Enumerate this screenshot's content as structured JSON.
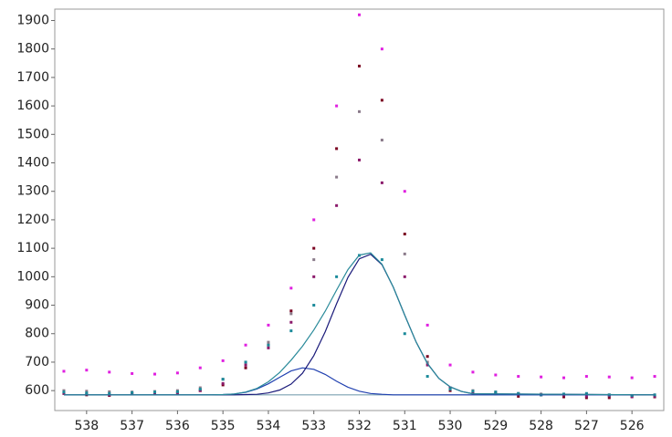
{
  "chart_data": {
    "type": "scatter",
    "xlim": [
      538.7,
      525.3
    ],
    "ylim": [
      530,
      1940
    ],
    "xticks": [
      538,
      537,
      536,
      535,
      534,
      533,
      532,
      531,
      530,
      529,
      528,
      527,
      526
    ],
    "yticks": [
      600,
      700,
      800,
      900,
      1000,
      1100,
      1200,
      1300,
      1400,
      1500,
      1600,
      1700,
      1800,
      1900
    ],
    "x": [
      538.5,
      538,
      537.5,
      537,
      536.5,
      536,
      535.5,
      535,
      534.5,
      534,
      533.5,
      533,
      532.5,
      532,
      531.5,
      531,
      530.5,
      530,
      529.5,
      529,
      528.5,
      528,
      527.5,
      527,
      526.5,
      526,
      525.5
    ],
    "series": [
      {
        "color": "#e020e0",
        "values": [
          668,
          672,
          665,
          660,
          658,
          662,
          680,
          705,
          760,
          830,
          960,
          1200,
          1600,
          1920,
          1800,
          1300,
          830,
          690,
          665,
          655,
          650,
          648,
          645,
          650,
          648,
          645,
          650
        ]
      },
      {
        "color": "#7a0020",
        "values": [
          590,
          585,
          583,
          588,
          590,
          592,
          600,
          620,
          680,
          760,
          880,
          1100,
          1450,
          1740,
          1620,
          1150,
          720,
          600,
          590,
          588,
          580,
          585,
          578,
          575,
          575,
          580,
          578
        ]
      },
      {
        "color": "#8a7a8a",
        "values": [
          600,
          598,
          596,
          595,
          597,
          600,
          610,
          640,
          700,
          770,
          870,
          1060,
          1350,
          1580,
          1480,
          1080,
          700,
          610,
          600,
          595,
          590,
          588,
          585,
          588,
          585,
          583,
          585
        ]
      },
      {
        "color": "#8b1a6b",
        "values": [
          590,
          588,
          585,
          590,
          588,
          590,
          600,
          625,
          690,
          750,
          840,
          1000,
          1250,
          1410,
          1330,
          1000,
          690,
          610,
          595,
          590,
          588,
          585,
          585,
          580,
          582,
          578,
          580
        ]
      },
      {
        "color": "#1a8a9a",
        "values": [
          595,
          592,
          590,
          593,
          595,
          596,
          605,
          640,
          700,
          760,
          810,
          900,
          1000,
          1075,
          1060,
          800,
          650,
          605,
          598,
          595,
          590,
          585,
          588,
          590,
          585,
          583,
          585
        ]
      }
    ],
    "fit_x": [
      538.5,
      535.5,
      535.25,
      535,
      534.75,
      534.5,
      534.25,
      534,
      533.75,
      533.5,
      533.25,
      533,
      532.75,
      532.5,
      532.25,
      532,
      531.75,
      531.5,
      531.25,
      531,
      530.75,
      530.5,
      530.25,
      530,
      529.75,
      529.5,
      525.5
    ],
    "fits": [
      {
        "color": "#7aa0b0",
        "values": [
          585,
          585,
          585,
          585,
          585,
          585,
          585,
          585,
          585,
          585,
          585,
          585,
          585,
          585,
          585,
          585,
          585,
          585,
          585,
          585,
          585,
          585,
          585,
          585,
          585,
          585,
          585
        ]
      },
      {
        "color": "#2040b0",
        "values": [
          585,
          585,
          585,
          586,
          588,
          594,
          606,
          624,
          647,
          669,
          680,
          675,
          657,
          633,
          612,
          598,
          590,
          587,
          585,
          585,
          585,
          585,
          585,
          585,
          585,
          585,
          585
        ]
      },
      {
        "color": "#1a1a7a",
        "values": [
          585,
          585,
          585,
          585,
          585,
          586,
          587,
          592,
          602,
          623,
          661,
          723,
          807,
          905,
          998,
          1063,
          1079,
          1042,
          963,
          865,
          771,
          695,
          643,
          613,
          597,
          589,
          585
        ]
      },
      {
        "color": "#2a8a9a",
        "values": [
          585,
          585,
          585,
          586,
          588,
          595,
          608,
          631,
          664,
          707,
          756,
          813,
          879,
          953,
          1025,
          1076,
          1084,
          1044,
          963,
          865,
          771,
          695,
          643,
          613,
          597,
          589,
          585
        ]
      }
    ]
  }
}
